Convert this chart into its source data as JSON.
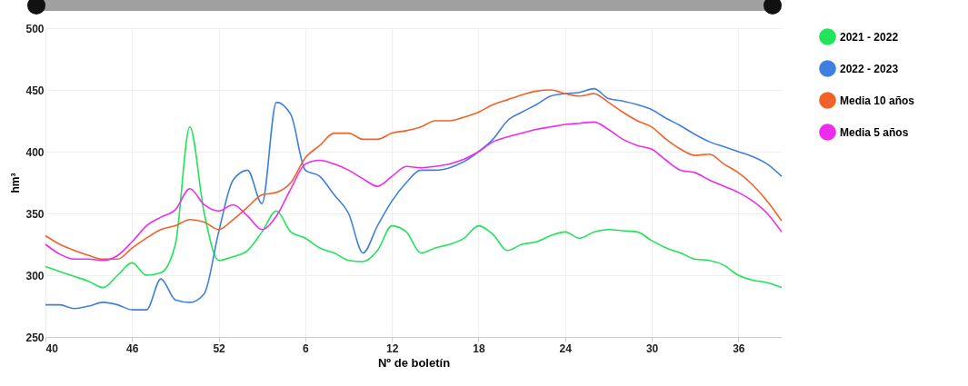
{
  "chart_data": {
    "type": "line",
    "xlabel": "Nº de boletín",
    "ylabel": "hm³",
    "categories": [
      "40",
      null,
      null,
      null,
      null,
      null,
      "46",
      null,
      null,
      null,
      null,
      null,
      "52",
      null,
      null,
      null,
      null,
      null,
      "6",
      null,
      null,
      null,
      null,
      null,
      "12",
      null,
      null,
      null,
      null,
      null,
      "18",
      null,
      null,
      null,
      null,
      null,
      "24",
      null,
      null,
      null,
      null,
      null,
      "30",
      null,
      null,
      null,
      null,
      null,
      "36",
      null,
      null,
      null
    ],
    "series": [
      {
        "name": "2021 - 2022",
        "color": "#22e35a",
        "values": [
          307,
          303,
          299,
          295,
          290,
          300,
          310,
          300,
          302,
          325,
          420,
          350,
          312,
          315,
          320,
          335,
          352,
          335,
          330,
          322,
          318,
          312,
          311,
          320,
          340,
          335,
          318,
          322,
          325,
          330,
          340,
          333,
          320,
          325,
          327,
          332,
          335,
          330,
          335,
          337,
          336,
          335,
          328,
          322,
          318,
          313,
          312,
          308,
          300,
          296,
          294,
          290
        ]
      },
      {
        "name": "2022 - 2023",
        "color": "#3f7fe0",
        "values": [
          276,
          276,
          273,
          275,
          278,
          276,
          272,
          272,
          297,
          280,
          278,
          285,
          335,
          377,
          385,
          358,
          440,
          430,
          385,
          380,
          365,
          350,
          318,
          340,
          360,
          375,
          385,
          385,
          387,
          392,
          400,
          410,
          425,
          432,
          438,
          445,
          447,
          448,
          451,
          443,
          441,
          438,
          434,
          427,
          421,
          414,
          408,
          404,
          400,
          396,
          390,
          380
        ]
      },
      {
        "name": "Media 10 años",
        "color": "#f0622a",
        "values": [
          332,
          325,
          320,
          316,
          313,
          313,
          322,
          330,
          337,
          340,
          345,
          343,
          337,
          345,
          355,
          365,
          367,
          375,
          395,
          405,
          415,
          415,
          410,
          410,
          415,
          417,
          420,
          425,
          425,
          428,
          432,
          438,
          442,
          446,
          449,
          450,
          447,
          445,
          447,
          440,
          432,
          425,
          420,
          410,
          402,
          397,
          398,
          390,
          383,
          373,
          360,
          344
        ]
      },
      {
        "name": "Media 5 años",
        "color": "#ee2cef",
        "values": [
          325,
          317,
          313,
          313,
          312,
          316,
          327,
          340,
          347,
          353,
          370,
          357,
          352,
          357,
          348,
          337,
          348,
          370,
          390,
          393,
          390,
          385,
          378,
          372,
          380,
          388,
          387,
          388,
          390,
          394,
          400,
          408,
          412,
          415,
          418,
          420,
          422,
          423,
          424,
          418,
          410,
          405,
          402,
          393,
          385,
          383,
          377,
          372,
          367,
          360,
          350,
          335
        ]
      }
    ],
    "ylim": [
      250,
      500
    ],
    "yticks": [
      250,
      300,
      350,
      400,
      450,
      500
    ],
    "grid": true,
    "legend": "right"
  }
}
